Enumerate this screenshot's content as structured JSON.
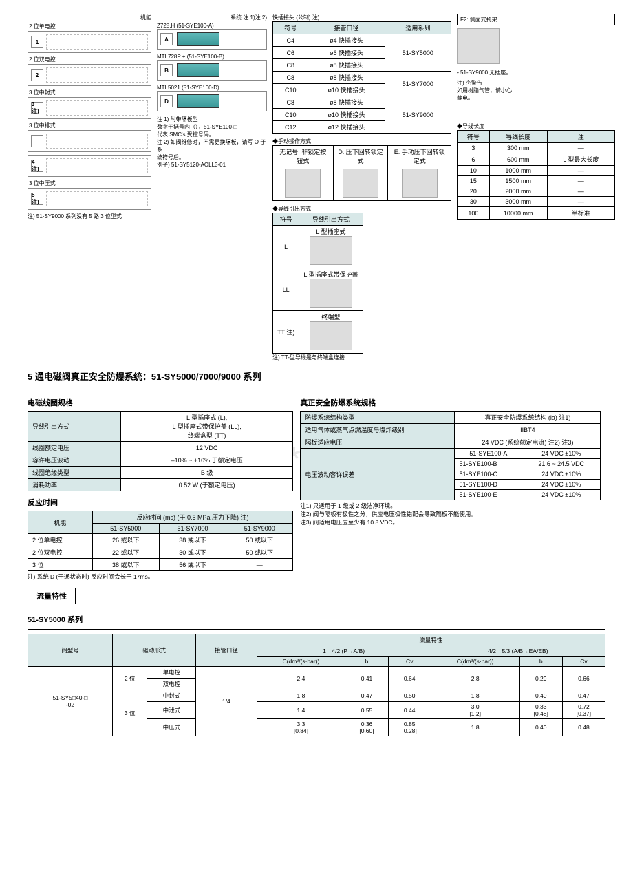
{
  "watermark": "www.bd***.com",
  "top": {
    "func_label": "机能",
    "funcs": [
      {
        "n": "1",
        "label": "2 位单电控"
      },
      {
        "n": "2",
        "label": "2 位双电控"
      },
      {
        "n": "3 注)",
        "label": "3 位中封式"
      },
      {
        "n": "",
        "label": "3 位中排式"
      },
      {
        "n": "4 注)",
        "label": ""
      },
      {
        "n": "5 注)",
        "label": "3 位中压式"
      }
    ],
    "func_note": "注) 51-SY9000 系列没有 5 路 3 位型式",
    "sys_label": "系统 注 1)注 2)",
    "systems": [
      {
        "l": "A",
        "t": "Z728.H (51-SYE100-A)"
      },
      {
        "l": "B",
        "t": "MTL728P + (51-SYE100-B)"
      },
      {
        "l": "D",
        "t": "MTL5021 (51-SYE100-D)"
      }
    ],
    "sys_notes": "注 1) 附带隔板型\n        数字于括号内（），51-SYE100-□\n        代表 SMC's 受控号码。\n注 2) 如阀维修时，不需更换隔板，请写 O 于系\n        统符号后。\n        例子) 51-SY5120-AOLL3-01",
    "fitting_header": "快插接头 (公制) 注)",
    "fitting_cols": [
      "符号",
      "接管口径",
      "适用系列"
    ],
    "fittings": [
      [
        "C4",
        "ø4 快插接头",
        "51-SY5000"
      ],
      [
        "C6",
        "ø6 快插接头",
        "51-SY5000"
      ],
      [
        "C8",
        "ø8 快插接头",
        "51-SY5000"
      ],
      [
        "C8",
        "ø8 快插接头",
        "51-SY7000"
      ],
      [
        "C10",
        "ø10 快插接头",
        "51-SY7000"
      ],
      [
        "C8",
        "ø8 快插接头",
        "51-SY9000"
      ],
      [
        "C10",
        "ø10 快插接头",
        "51-SY9000"
      ],
      [
        "C12",
        "ø12 快插接头",
        "51-SY9000"
      ]
    ],
    "f2_label": "F2: 侧面式托架",
    "f2_note": "• 51-SY9000 无插座。",
    "warn_title": "注) ⚠警告",
    "warn_text": "如用树脂气管，请小心\n静电。",
    "manual_header": "手动操作方式",
    "manual_row": [
      "无记号: 非锁定按钮式",
      "D: 压下回转锁定式",
      "E: 手动压下回转锁定式"
    ],
    "lead_header": "导线引出方式",
    "lead_cols": [
      "符号",
      "导线引出方式"
    ],
    "leads": [
      [
        "L",
        "L 型插座式"
      ],
      [
        "LL",
        "L 型插座式带保护盖"
      ],
      [
        "TT 注)",
        "终端型"
      ]
    ],
    "lead_note": "注) TT-型导线是与终端盒连接",
    "len_header": "导线长度",
    "len_cols": [
      "符号",
      "导线长度",
      "注"
    ],
    "lens": [
      [
        "3",
        "300 mm",
        "—"
      ],
      [
        "6",
        "600 mm",
        "L 型最大长度"
      ],
      [
        "10",
        "1000 mm",
        "—"
      ],
      [
        "15",
        "1500 mm",
        "—"
      ],
      [
        "20",
        "2000 mm",
        "—"
      ],
      [
        "30",
        "3000 mm",
        "—"
      ],
      [
        "100",
        "10000 mm",
        "半标准"
      ]
    ]
  },
  "main_title": "5 通电磁阀真正安全防爆系统：51-SY5000/7000/9000 系列",
  "coil_title": "电磁线圈规格",
  "coil_rows": [
    [
      "导线引出方式",
      "L 型插座式 (L),\nL 型插座式带保护盖 (LL),\n终端盒型 (TT)"
    ],
    [
      "线圈额定电压",
      "12 VDC"
    ],
    [
      "容许电压波动",
      "–10% ~ +10% 于额定电压"
    ],
    [
      "线圈绝缘类型",
      "B 级"
    ],
    [
      "消耗功率",
      "0.52 W (于额定电压)"
    ]
  ],
  "resp_title": "反应时间",
  "resp_header": [
    "机能",
    "反应时间 (ms) (于 0.5 MPa 压力下降) 注)"
  ],
  "resp_sub": [
    "51-SY5000",
    "51-SY7000",
    "51-SY9000"
  ],
  "resp_rows": [
    [
      "2 位单电控",
      "26 或以下",
      "38 或以下",
      "50 或以下"
    ],
    [
      "2 位双电控",
      "22 或以下",
      "30 或以下",
      "50 或以下"
    ],
    [
      "3 位",
      "38 或以下",
      "56 或以下",
      "—"
    ]
  ],
  "resp_note": "注) 系统 D (于通状态时) 反应时间会长于 17ms。",
  "safety_title": "真正安全防爆系统规格",
  "safety_rows1": [
    [
      "防爆系统结构类型",
      "真正安全防爆系统结构 (ia) 注1)"
    ],
    [
      "适用气体或蒸气点燃温度与爆炸级别",
      "IIBT4"
    ],
    [
      "隔板适应电压",
      "24 VDC (系统额定电流) 注2) 注3)"
    ]
  ],
  "safety_volt_label": "电压波动容许误差",
  "safety_volt_rows": [
    [
      "51-SYE100-A",
      "24 VDC ±10%"
    ],
    [
      "51-SYE100-B",
      "21.6 ~ 24.5 VDC"
    ],
    [
      "51-SYE100-C",
      "24 VDC ±10%"
    ],
    [
      "51-SYE100-D",
      "24 VDC ±10%"
    ],
    [
      "51-SYE100-E",
      "24 VDC ±10%"
    ]
  ],
  "safety_notes": "注1) 只适用于 1 级或 2 级洁净环境。\n注2) 阀与隔板有极性之分，供应电压极性错配会导致隔板不能使用。\n注3) 阀适用电压应至少有 10.8 VDC。",
  "flow_box": "流量特性",
  "flow_series": "51-SY5000 系列",
  "flow_headers": {
    "model": "阀型号",
    "drive": "驱动形式",
    "port": "接管口径",
    "flow": "流量特性",
    "g1": "1→4/2 (P→A/B)",
    "g2": "4/2→5/3 (A/B→EA/EB)",
    "c": "C(dm³/(s·bar))",
    "b": "b",
    "cv": "Cv"
  },
  "flow_model": "51-SY5□40-□\n-02",
  "flow_rows": [
    {
      "pos": "2 位",
      "drive": "单电控",
      "port": "1/4",
      "c1": "2.4",
      "b1": "0.41",
      "cv1": "0.64",
      "c2": "2.8",
      "b2": "0.29",
      "cv2": "0.66"
    },
    {
      "pos": "",
      "drive": "双电控",
      "port": "",
      "c1": "",
      "b1": "",
      "cv1": "",
      "c2": "",
      "b2": "",
      "cv2": ""
    },
    {
      "pos": "3 位",
      "drive": "中封式",
      "port": "",
      "c1": "1.8",
      "b1": "0.47",
      "cv1": "0.50",
      "c2": "1.8",
      "b2": "0.40",
      "cv2": "0.47"
    },
    {
      "pos": "",
      "drive": "中泄式",
      "port": "",
      "c1": "1.4",
      "b1": "0.55",
      "cv1": "0.44",
      "c2": "3.0\n[1.2]",
      "b2": "0.33\n[0.48]",
      "cv2": "0.72\n[0.37]"
    },
    {
      "pos": "",
      "drive": "中压式",
      "port": "",
      "c1": "3.3\n[0.84]",
      "b1": "0.36\n[0.60]",
      "cv1": "0.85\n[0.28]",
      "c2": "1.8",
      "b2": "0.40",
      "cv2": "0.48"
    }
  ]
}
